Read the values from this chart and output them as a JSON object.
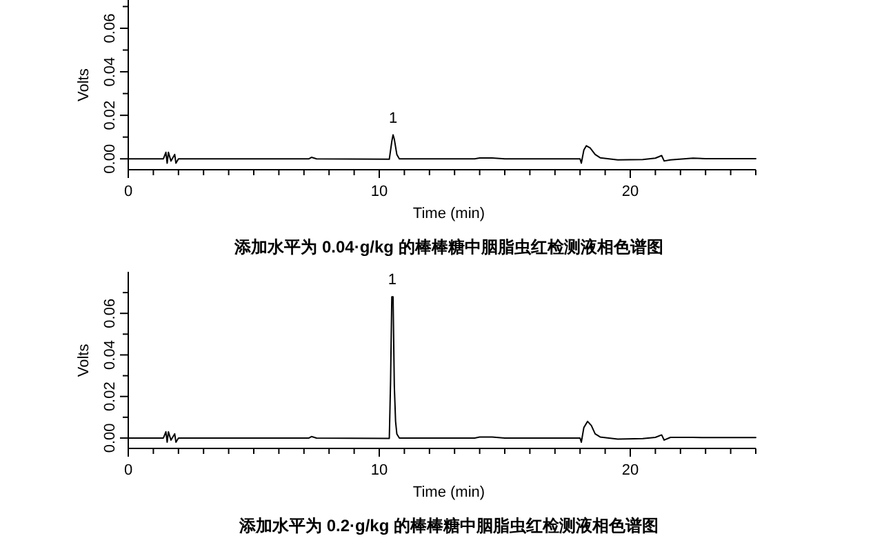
{
  "chart_data": [
    {
      "type": "line",
      "title": "添加水平为 0.04·g/kg 的棒棒糖中胭脂虫红检测液相色谱图",
      "xlabel": "Time (min)",
      "ylabel": "Volts",
      "xlim": [
        0,
        25
      ],
      "ylim": [
        -0.005,
        0.073
      ],
      "xticks": [
        0,
        {
          "value": 1,
          "label": null
        },
        {
          "value": 2,
          "label": null
        },
        {
          "value": 3,
          "label": null
        },
        {
          "value": 4,
          "label": null
        },
        {
          "value": 5,
          "label": null
        },
        {
          "value": 6,
          "label": null
        },
        {
          "value": 7,
          "label": null
        },
        {
          "value": 8,
          "label": null
        },
        {
          "value": 9,
          "label": null
        },
        10,
        {
          "value": 11,
          "label": null
        },
        {
          "value": 12,
          "label": null
        },
        {
          "value": 13,
          "label": null
        },
        {
          "value": 14,
          "label": null
        },
        {
          "value": 15,
          "label": null
        },
        {
          "value": 16,
          "label": null
        },
        {
          "value": 17,
          "label": null
        },
        {
          "value": 18,
          "label": null
        },
        {
          "value": 19,
          "label": null
        },
        20,
        {
          "value": 21,
          "label": null
        },
        {
          "value": 22,
          "label": null
        },
        {
          "value": 23,
          "label": null
        },
        {
          "value": 24,
          "label": null
        },
        {
          "value": 25,
          "label": null
        }
      ],
      "yticks": [
        {
          "value": 0,
          "label": "0.00"
        },
        {
          "value": 0.01,
          "label": null
        },
        {
          "value": 0.02,
          "label": "0.02"
        },
        {
          "value": 0.03,
          "label": null
        },
        {
          "value": 0.04,
          "label": "0.04"
        },
        {
          "value": 0.05,
          "label": null
        },
        {
          "value": 0.06,
          "label": "0.06"
        },
        {
          "value": 0.07,
          "label": null
        }
      ],
      "annotations": [
        {
          "text": "1",
          "x": 10.55,
          "y": 0.011
        }
      ],
      "series": [
        {
          "color": "#000000",
          "x": [
            0,
            1.4,
            1.5,
            1.55,
            1.6,
            1.7,
            1.85,
            1.9,
            2.0,
            7.2,
            7.3,
            7.5,
            10.4,
            10.5,
            10.55,
            10.6,
            10.7,
            10.8,
            13.8,
            14.0,
            14.5,
            15.0,
            18.0,
            18.05,
            18.15,
            18.25,
            18.4,
            18.6,
            18.8,
            19.5,
            20.5,
            21.0,
            21.25,
            21.35,
            21.6,
            22.5,
            23.0,
            25
          ],
          "values": [
            0,
            0,
            0.003,
            -0.002,
            0.003,
            -0.001,
            0.002,
            -0.002,
            0,
            0,
            0.0007,
            0,
            -0.0002,
            0.008,
            0.011,
            0.009,
            0.002,
            0,
            0,
            0.0004,
            0.0004,
            0,
            0,
            -0.002,
            0.004,
            0.006,
            0.005,
            0.002,
            0.0005,
            -0.0005,
            -0.0003,
            0.0003,
            0.0015,
            -0.001,
            -0.0005,
            0.0003,
            0.0001,
            0.0001
          ]
        }
      ]
    },
    {
      "type": "line",
      "title": "添加水平为 0.2·g/kg 的棒棒糖中胭脂虫红检测液相色谱图",
      "xlabel": "Time (min)",
      "ylabel": "Volts",
      "xlim": [
        0,
        25
      ],
      "ylim": [
        -0.005,
        0.08
      ],
      "xticks": [
        0,
        {
          "value": 1,
          "label": null
        },
        {
          "value": 2,
          "label": null
        },
        {
          "value": 3,
          "label": null
        },
        {
          "value": 4,
          "label": null
        },
        {
          "value": 5,
          "label": null
        },
        {
          "value": 6,
          "label": null
        },
        {
          "value": 7,
          "label": null
        },
        {
          "value": 8,
          "label": null
        },
        {
          "value": 9,
          "label": null
        },
        10,
        {
          "value": 11,
          "label": null
        },
        {
          "value": 12,
          "label": null
        },
        {
          "value": 13,
          "label": null
        },
        {
          "value": 14,
          "label": null
        },
        {
          "value": 15,
          "label": null
        },
        {
          "value": 16,
          "label": null
        },
        {
          "value": 17,
          "label": null
        },
        {
          "value": 18,
          "label": null
        },
        {
          "value": 19,
          "label": null
        },
        20,
        {
          "value": 21,
          "label": null
        },
        {
          "value": 22,
          "label": null
        },
        {
          "value": 23,
          "label": null
        },
        {
          "value": 24,
          "label": null
        },
        {
          "value": 25,
          "label": null
        }
      ],
      "yticks": [
        {
          "value": 0,
          "label": "0.00"
        },
        {
          "value": 0.01,
          "label": null
        },
        {
          "value": 0.02,
          "label": "0.02"
        },
        {
          "value": 0.03,
          "label": null
        },
        {
          "value": 0.04,
          "label": "0.04"
        },
        {
          "value": 0.05,
          "label": null
        },
        {
          "value": 0.06,
          "label": "0.06"
        },
        {
          "value": 0.07,
          "label": null
        }
      ],
      "annotations": [
        {
          "text": "1",
          "x": 10.52,
          "y": 0.068
        }
      ],
      "series": [
        {
          "color": "#000000",
          "x": [
            0,
            1.4,
            1.5,
            1.55,
            1.6,
            1.7,
            1.85,
            1.9,
            2.0,
            7.2,
            7.3,
            7.5,
            10.4,
            10.45,
            10.5,
            10.55,
            10.6,
            10.65,
            10.7,
            10.8,
            13.8,
            14.0,
            14.5,
            15.0,
            18.0,
            18.05,
            18.15,
            18.3,
            18.45,
            18.6,
            18.8,
            19.5,
            20.5,
            21.0,
            21.25,
            21.35,
            21.6,
            22.5,
            23.0,
            25
          ],
          "values": [
            0,
            0,
            0.003,
            -0.002,
            0.003,
            -0.001,
            0.002,
            -0.002,
            0,
            0,
            0.0007,
            0,
            -0.0002,
            0.027,
            0.068,
            0.068,
            0.025,
            0.008,
            0.002,
            0,
            0,
            0.0005,
            0.0005,
            0,
            0,
            -0.002,
            0.005,
            0.008,
            0.006,
            0.002,
            0.0005,
            -0.0005,
            -0.0003,
            0.0003,
            0.0015,
            -0.001,
            0.0003,
            0.0003,
            0.0002,
            0.0002
          ]
        }
      ]
    }
  ]
}
